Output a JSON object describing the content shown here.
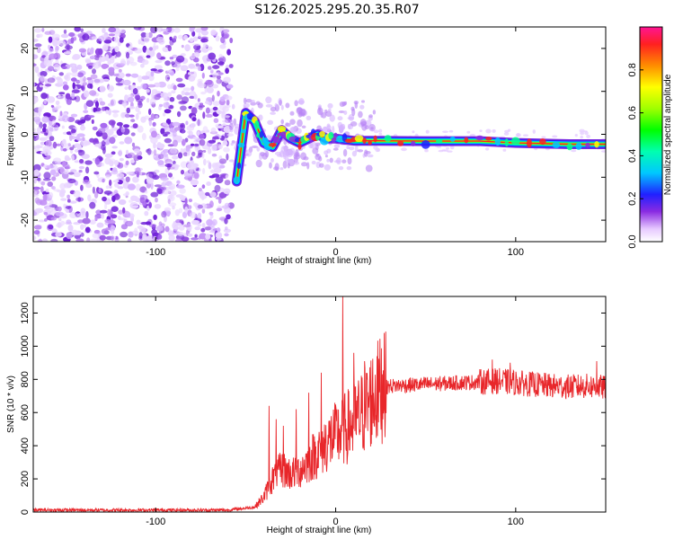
{
  "title": "S126.2025.295.20.35.R07",
  "chart_data": [
    {
      "type": "heatmap",
      "xlabel": "Height of straight line (km)",
      "ylabel": "Frequency (Hz)",
      "xlim": [
        -168,
        150
      ],
      "ylim": [
        -25,
        25
      ],
      "xticks": [
        "-100",
        "0",
        "100"
      ],
      "xtick_values": [
        -100,
        0,
        100
      ],
      "yticks": [
        "-20",
        "-10",
        "0",
        "10",
        "20"
      ],
      "ytick_values": [
        -20,
        -10,
        0,
        10,
        20
      ],
      "colorbar": {
        "label": "Normalized spectral amplitude",
        "range": [
          0,
          1
        ],
        "ticks": [
          "0.0",
          "0.2",
          "0.4",
          "0.6",
          "0.8"
        ],
        "tick_values": [
          0.0,
          0.2,
          0.4,
          0.6,
          0.8
        ]
      },
      "ridge": [
        {
          "x": -55,
          "y": -11
        },
        {
          "x": -50,
          "y": 5
        },
        {
          "x": -45,
          "y": 3
        },
        {
          "x": -40,
          "y": -2
        },
        {
          "x": -35,
          "y": -3
        },
        {
          "x": -30,
          "y": 1
        },
        {
          "x": -25,
          "y": -1
        },
        {
          "x": -20,
          "y": -2
        },
        {
          "x": -15,
          "y": -1
        },
        {
          "x": -10,
          "y": 0
        },
        {
          "x": -5,
          "y": -1
        },
        {
          "x": 0,
          "y": -1
        },
        {
          "x": 10,
          "y": -1.5
        },
        {
          "x": 22,
          "y": -1.5
        },
        {
          "x": 50,
          "y": -1.6
        },
        {
          "x": 80,
          "y": -1.6
        },
        {
          "x": 100,
          "y": -2
        },
        {
          "x": 130,
          "y": -2.3
        },
        {
          "x": 150,
          "y": -2.3
        }
      ]
    },
    {
      "type": "line",
      "xlabel": "Height of straight line (km)",
      "ylabel": "SNR (10 * v/v)",
      "xlim": [
        -168,
        150
      ],
      "ylim": [
        0,
        1300
      ],
      "xticks": [
        "-100",
        "0",
        "100"
      ],
      "xtick_values": [
        -100,
        0,
        100
      ],
      "yticks": [
        "0",
        "200",
        "400",
        "600",
        "800",
        "1000",
        "1200"
      ],
      "ytick_values": [
        0,
        200,
        400,
        600,
        800,
        1000,
        1200
      ],
      "series": [
        {
          "name": "SNR",
          "color": "#e8262a",
          "envelope_x": [
            -168,
            -60,
            -45,
            -40,
            -35,
            -30,
            -25,
            -20,
            -15,
            -10,
            -5,
            0,
            5,
            10,
            15,
            20,
            25,
            30,
            40,
            50,
            60,
            70,
            80,
            90,
            100,
            110,
            120,
            130,
            140,
            150
          ],
          "envelope_y": [
            12,
            12,
            30,
            90,
            200,
            260,
            230,
            250,
            310,
            360,
            420,
            460,
            500,
            540,
            600,
            680,
            740,
            760,
            765,
            770,
            775,
            780,
            785,
            790,
            780,
            770,
            760,
            755,
            760,
            750
          ],
          "spikes": [
            {
              "x": -37,
              "y": 640
            },
            {
              "x": -33,
              "y": 560
            },
            {
              "x": -29,
              "y": 520
            },
            {
              "x": -22,
              "y": 620
            },
            {
              "x": -15,
              "y": 720
            },
            {
              "x": -8,
              "y": 840
            },
            {
              "x": 4,
              "y": 1300
            },
            {
              "x": 10,
              "y": 960
            },
            {
              "x": 16,
              "y": 910
            },
            {
              "x": 23,
              "y": 940
            },
            {
              "x": 27,
              "y": 1080
            },
            {
              "x": 87,
              "y": 920
            },
            {
              "x": 97,
              "y": 900
            },
            {
              "x": 145,
              "y": 910
            }
          ]
        }
      ]
    }
  ]
}
